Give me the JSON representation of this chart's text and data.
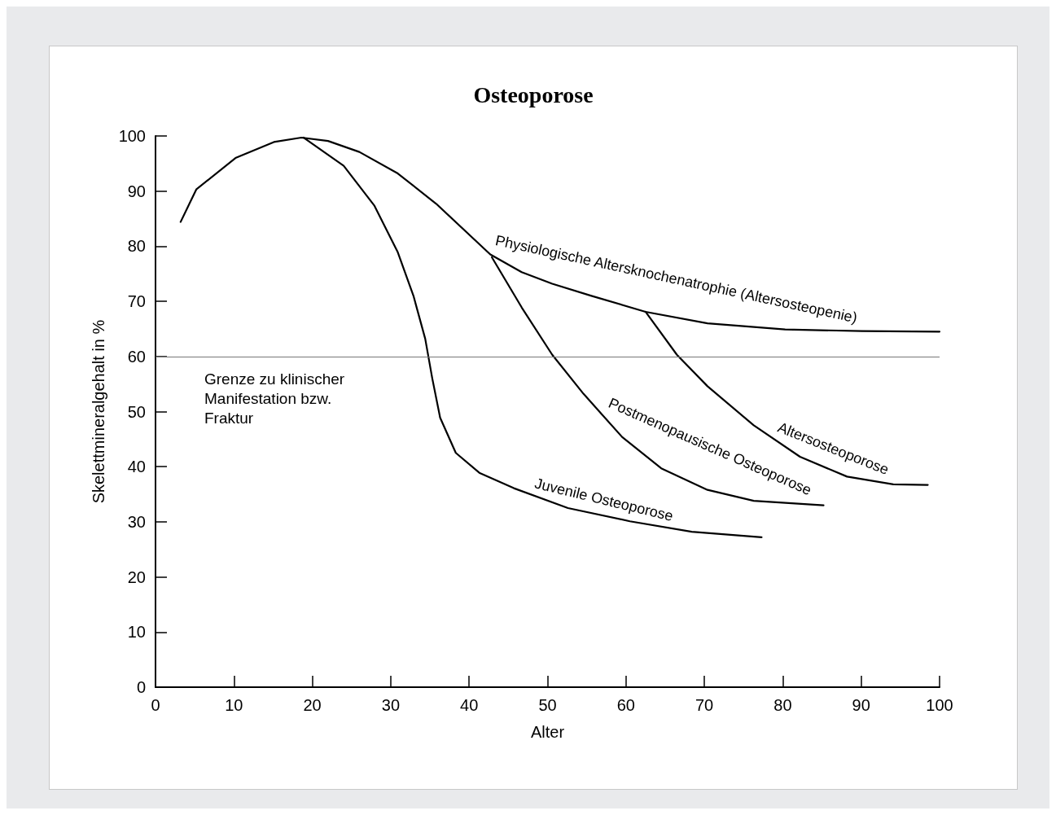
{
  "chart_data": {
    "type": "line",
    "title": "Osteoporose",
    "xlabel": "Alter",
    "ylabel": "Skelettmineralgehalt in %",
    "xlim": [
      0,
      100
    ],
    "ylim": [
      0,
      100
    ],
    "xticks": [
      0,
      10,
      20,
      30,
      40,
      50,
      60,
      70,
      80,
      90,
      100
    ],
    "yticks": [
      0,
      10,
      20,
      30,
      40,
      50,
      60,
      70,
      80,
      90,
      100
    ],
    "grid": false,
    "legend": false,
    "marker": "none",
    "line_style": "solid",
    "series": [
      {
        "name": "Physiologische Altersknochenatrophie (Altersosteopenie)",
        "color": "#000000",
        "x": [
          3.2,
          5.2,
          10.2,
          15.1,
          18.6,
          22,
          26,
          30.9,
          35.8,
          42.7,
          46.7,
          50.6,
          55.6,
          62.5,
          70.4,
          80.3,
          90.1,
          100
        ],
        "values": [
          84.4,
          90.3,
          96,
          98.9,
          99.7,
          99.1,
          97.1,
          93.2,
          87.7,
          78.5,
          75.3,
          73.2,
          71,
          68.1,
          66,
          64.9,
          64.6,
          64.5
        ]
      },
      {
        "name": "Juvenile Osteoporose",
        "color": "#000000",
        "x": [
          18.9,
          24,
          27.9,
          30.9,
          32.9,
          34.4,
          35.3,
          36.3,
          38.3,
          41.3,
          45.7,
          52.6,
          60.5,
          68.4,
          77.3
        ],
        "values": [
          99.7,
          94.6,
          87.4,
          78.9,
          71,
          63.2,
          56,
          48.9,
          42.5,
          38.9,
          36.1,
          32.5,
          30.1,
          28.2,
          27.2
        ]
      },
      {
        "name": "Postmenopausische Osteoporose",
        "color": "#000000",
        "x": [
          42.9,
          46.7,
          50.6,
          54.6,
          59.5,
          64.5,
          70.4,
          76.3,
          85.2
        ],
        "values": [
          78,
          68.9,
          60.3,
          53.2,
          45.4,
          39.7,
          35.8,
          33.8,
          33
        ]
      },
      {
        "name": "Altersosteoporose",
        "color": "#000000",
        "x": [
          62.5,
          66.5,
          70.4,
          76.3,
          82.2,
          88.2,
          94.1,
          98.5
        ],
        "values": [
          68.1,
          60.3,
          54.6,
          47.5,
          41.8,
          38.2,
          36.8,
          36.7
        ]
      }
    ],
    "ref_lines": [
      {
        "axis": "y",
        "value": 60,
        "label": "Grenze zu klinischer Manifestation bzw. Fraktur",
        "color": "#777777"
      }
    ]
  }
}
